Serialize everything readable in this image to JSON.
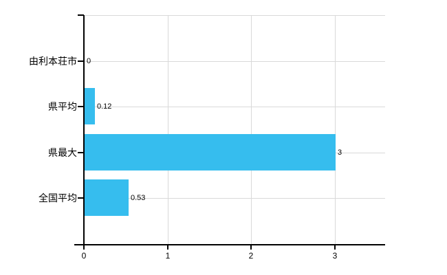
{
  "chart_data": {
    "type": "bar",
    "orientation": "horizontal",
    "title": "",
    "categories": [
      "由利本荘市",
      "県平均",
      "県最大",
      "全国平均"
    ],
    "values": [
      0,
      0.12,
      3,
      0.53
    ],
    "value_labels": [
      "0",
      "0.12",
      "3",
      "0.53"
    ],
    "x_ticks": [
      0,
      1,
      2,
      3
    ],
    "x_tick_labels": [
      "0",
      "1",
      "2",
      "3"
    ],
    "xlim": [
      0,
      3.6
    ],
    "grid": true,
    "legend": "none",
    "colors": {
      "bar": "#36BDEE",
      "grid": "#D9D9D9",
      "axis": "#000000",
      "text": "#000000"
    }
  }
}
